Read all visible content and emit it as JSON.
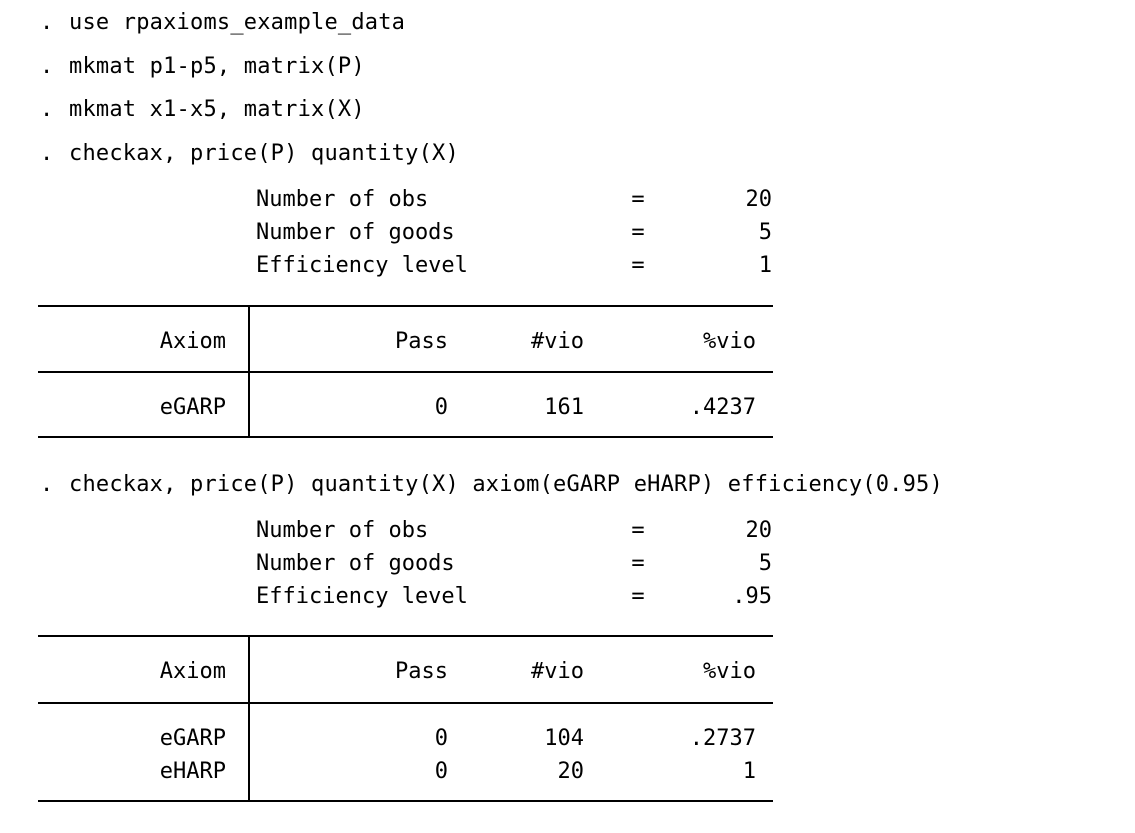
{
  "commands": [
    {
      "prompt": ".",
      "text": "use rpaxioms_example_data"
    },
    {
      "prompt": ".",
      "text": "mkmat p1-p5, matrix(P)"
    },
    {
      "prompt": ".",
      "text": "mkmat x1-x5, matrix(X)"
    },
    {
      "prompt": ".",
      "text": "checkax, price(P) quantity(X)"
    },
    {
      "prompt": ".",
      "text": "checkax, price(P) quantity(X) axiom(eGARP eHARP) efficiency(0.95)"
    }
  ],
  "results": [
    {
      "summary": [
        {
          "label": "Number of obs",
          "eq": "=",
          "value": "20"
        },
        {
          "label": "Number of goods",
          "eq": "=",
          "value": "5"
        },
        {
          "label": "Efficiency level",
          "eq": "=",
          "value": "1"
        }
      ],
      "table": {
        "headers": [
          "Axiom",
          "Pass",
          "#vio",
          "%vio"
        ],
        "rows": [
          [
            "eGARP",
            "0",
            "161",
            ".4237"
          ]
        ]
      }
    },
    {
      "summary": [
        {
          "label": "Number of obs",
          "eq": "=",
          "value": "20"
        },
        {
          "label": "Number of goods",
          "eq": "=",
          "value": "5"
        },
        {
          "label": "Efficiency level",
          "eq": "=",
          "value": ".95"
        }
      ],
      "table": {
        "headers": [
          "Axiom",
          "Pass",
          "#vio",
          "%vio"
        ],
        "rows": [
          [
            "eGARP",
            "0",
            "104",
            ".2737"
          ],
          [
            "eHARP",
            "0",
            "20",
            "1"
          ]
        ]
      }
    }
  ]
}
